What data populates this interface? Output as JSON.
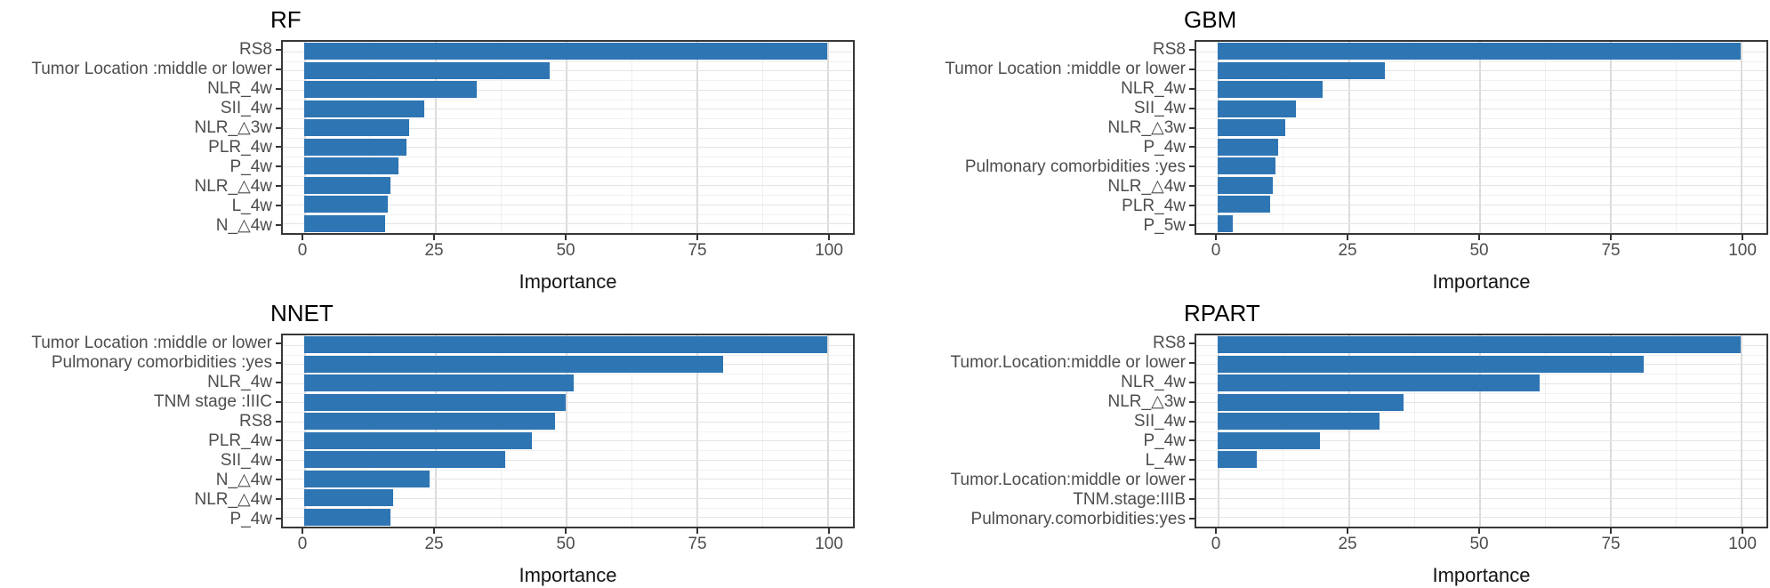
{
  "figure": {
    "bar_color": "#2E75B4",
    "panel_border_color": "#383838",
    "grid_major_color": "#dcdcdc",
    "grid_minor_color": "#efefef",
    "axis_text_color": "#4d4d4d",
    "title_color": "#000000",
    "background": "#ffffff"
  },
  "chart_data": [
    {
      "type": "bar",
      "orientation": "horizontal",
      "title": "RF",
      "xlabel": "Importance",
      "xlim": [
        0,
        100
      ],
      "xticks": [
        0,
        25,
        50,
        75,
        100
      ],
      "grid": true,
      "legend": false,
      "categories": [
        "RS8",
        "Tumor Location :middle or lower",
        "NLR_4w",
        "SII_4w",
        "NLR_△3w",
        "PLR_4w",
        "P_4w",
        "NLR_△4w",
        "L_4w",
        "N_△4w"
      ],
      "values": [
        100,
        47,
        33,
        23,
        20,
        19.5,
        18,
        16.5,
        16,
        15.5
      ]
    },
    {
      "type": "bar",
      "orientation": "horizontal",
      "title": "GBM",
      "xlabel": "Importance",
      "xlim": [
        0,
        100
      ],
      "xticks": [
        0,
        25,
        50,
        75,
        100
      ],
      "grid": true,
      "legend": false,
      "categories": [
        "RS8",
        "Tumor Location :middle or lower",
        "NLR_4w",
        "SII_4w",
        "NLR_△3w",
        "P_4w",
        "Pulmonary comorbidities :yes",
        "NLR_△4w",
        "PLR_4w",
        "P_5w"
      ],
      "values": [
        100,
        32,
        20,
        15,
        13,
        11.5,
        11,
        10.5,
        10,
        3
      ]
    },
    {
      "type": "bar",
      "orientation": "horizontal",
      "title": "NNET",
      "xlabel": "Importance",
      "xlim": [
        0,
        100
      ],
      "xticks": [
        0,
        25,
        50,
        75,
        100
      ],
      "grid": true,
      "legend": false,
      "categories": [
        "Tumor Location :middle or lower",
        "Pulmonary comorbidities :yes",
        "NLR_4w",
        "TNM stage :IIIC",
        "RS8",
        "PLR_4w",
        "SII_4w",
        "N_△4w",
        "NLR_△4w",
        "P_4w"
      ],
      "values": [
        100,
        80,
        51.5,
        50,
        48,
        43.5,
        38.5,
        24,
        17,
        16.5
      ]
    },
    {
      "type": "bar",
      "orientation": "horizontal",
      "title": "RPART",
      "xlabel": "Importance",
      "xlim": [
        0,
        100
      ],
      "xticks": [
        0,
        25,
        50,
        75,
        100
      ],
      "grid": true,
      "legend": false,
      "categories": [
        "RS8",
        "Tumor.Location:middle or lower",
        "NLR_4w",
        "NLR_△3w",
        "SII_4w",
        "P_4w",
        "L_4w",
        "Tumor.Location:middle or lower",
        "TNM.stage:IIIB",
        "Pulmonary.comorbidities:yes"
      ],
      "values": [
        100,
        81.5,
        61.5,
        35.5,
        31,
        19.5,
        7.5,
        0,
        0,
        0
      ]
    }
  ]
}
